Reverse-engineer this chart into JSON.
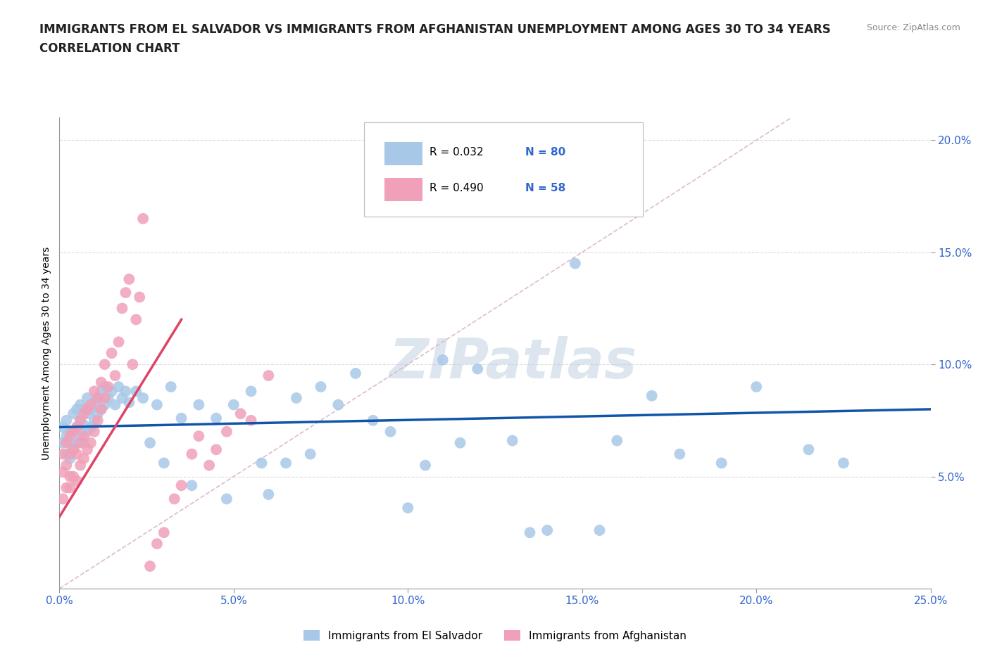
{
  "title_line1": "IMMIGRANTS FROM EL SALVADOR VS IMMIGRANTS FROM AFGHANISTAN UNEMPLOYMENT AMONG AGES 30 TO 34 YEARS",
  "title_line2": "CORRELATION CHART",
  "source": "Source: ZipAtlas.com",
  "ylabel": "Unemployment Among Ages 30 to 34 years",
  "xlim": [
    0.0,
    0.25
  ],
  "ylim": [
    0.0,
    0.21
  ],
  "xticks": [
    0.0,
    0.05,
    0.1,
    0.15,
    0.2,
    0.25
  ],
  "yticks": [
    0.05,
    0.1,
    0.15,
    0.2
  ],
  "xticklabels": [
    "0.0%",
    "5.0%",
    "10.0%",
    "15.0%",
    "20.0%",
    "25.0%"
  ],
  "yticklabels": [
    "5.0%",
    "10.0%",
    "15.0%",
    "20.0%"
  ],
  "color_salvador": "#a8c8e8",
  "color_afghanistan": "#f0a0b8",
  "line_color_salvador": "#1155aa",
  "line_color_afghanistan": "#dd4466",
  "diagonal_color": "#cccccc",
  "background_color": "#ffffff",
  "watermark": "ZIPatlas",
  "watermark_color_r": 180,
  "watermark_color_g": 200,
  "watermark_color_b": 220,
  "title_fontsize": 12,
  "axis_label_fontsize": 10,
  "tick_fontsize": 11,
  "tick_color": "#3366cc",
  "salvador_x": [
    0.001,
    0.001,
    0.002,
    0.002,
    0.002,
    0.003,
    0.003,
    0.003,
    0.004,
    0.004,
    0.004,
    0.005,
    0.005,
    0.005,
    0.006,
    0.006,
    0.006,
    0.007,
    0.007,
    0.007,
    0.008,
    0.008,
    0.008,
    0.009,
    0.009,
    0.01,
    0.01,
    0.011,
    0.011,
    0.012,
    0.012,
    0.013,
    0.013,
    0.014,
    0.015,
    0.016,
    0.017,
    0.018,
    0.019,
    0.02,
    0.022,
    0.024,
    0.026,
    0.028,
    0.03,
    0.032,
    0.035,
    0.038,
    0.04,
    0.045,
    0.048,
    0.05,
    0.055,
    0.058,
    0.06,
    0.065,
    0.068,
    0.072,
    0.075,
    0.08,
    0.085,
    0.09,
    0.095,
    0.1,
    0.105,
    0.11,
    0.115,
    0.12,
    0.13,
    0.135,
    0.14,
    0.148,
    0.155,
    0.16,
    0.17,
    0.178,
    0.19,
    0.2,
    0.215,
    0.225
  ],
  "salvador_y": [
    0.065,
    0.072,
    0.06,
    0.068,
    0.075,
    0.058,
    0.065,
    0.07,
    0.062,
    0.07,
    0.078,
    0.065,
    0.072,
    0.08,
    0.068,
    0.075,
    0.082,
    0.065,
    0.073,
    0.08,
    0.07,
    0.078,
    0.085,
    0.072,
    0.08,
    0.075,
    0.083,
    0.078,
    0.085,
    0.08,
    0.088,
    0.082,
    0.09,
    0.085,
    0.088,
    0.082,
    0.09,
    0.085,
    0.088,
    0.083,
    0.088,
    0.085,
    0.065,
    0.082,
    0.056,
    0.09,
    0.076,
    0.046,
    0.082,
    0.076,
    0.04,
    0.082,
    0.088,
    0.056,
    0.042,
    0.056,
    0.085,
    0.06,
    0.09,
    0.082,
    0.096,
    0.075,
    0.07,
    0.036,
    0.055,
    0.102,
    0.065,
    0.098,
    0.066,
    0.025,
    0.026,
    0.145,
    0.026,
    0.066,
    0.086,
    0.06,
    0.056,
    0.09,
    0.062,
    0.056
  ],
  "afghanistan_x": [
    0.001,
    0.001,
    0.001,
    0.002,
    0.002,
    0.002,
    0.003,
    0.003,
    0.003,
    0.003,
    0.004,
    0.004,
    0.004,
    0.005,
    0.005,
    0.005,
    0.006,
    0.006,
    0.006,
    0.007,
    0.007,
    0.007,
    0.008,
    0.008,
    0.009,
    0.009,
    0.01,
    0.01,
    0.011,
    0.011,
    0.012,
    0.012,
    0.013,
    0.013,
    0.014,
    0.015,
    0.016,
    0.017,
    0.018,
    0.019,
    0.02,
    0.021,
    0.022,
    0.023,
    0.024,
    0.026,
    0.028,
    0.03,
    0.033,
    0.035,
    0.038,
    0.04,
    0.043,
    0.045,
    0.048,
    0.052,
    0.055,
    0.06
  ],
  "afghanistan_y": [
    0.052,
    0.04,
    0.06,
    0.055,
    0.045,
    0.065,
    0.06,
    0.05,
    0.068,
    0.045,
    0.062,
    0.05,
    0.07,
    0.048,
    0.06,
    0.072,
    0.065,
    0.055,
    0.075,
    0.058,
    0.068,
    0.078,
    0.062,
    0.08,
    0.065,
    0.082,
    0.07,
    0.088,
    0.075,
    0.085,
    0.08,
    0.092,
    0.085,
    0.1,
    0.09,
    0.105,
    0.095,
    0.11,
    0.125,
    0.132,
    0.138,
    0.1,
    0.12,
    0.13,
    0.165,
    0.01,
    0.02,
    0.025,
    0.04,
    0.046,
    0.06,
    0.068,
    0.055,
    0.062,
    0.07,
    0.078,
    0.075,
    0.095
  ],
  "sal_line_x": [
    0.0,
    0.25
  ],
  "sal_line_y": [
    0.072,
    0.08
  ],
  "afg_line_x": [
    0.0,
    0.035
  ],
  "afg_line_y": [
    0.032,
    0.12
  ]
}
